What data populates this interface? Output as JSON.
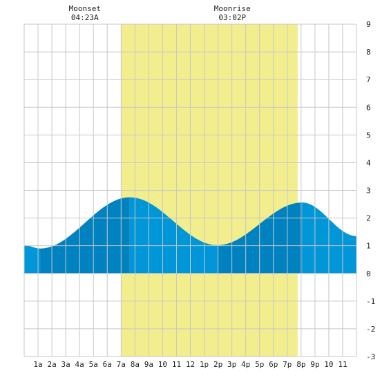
{
  "chart_data": {
    "type": "area",
    "x_unit": "hour",
    "xlim": [
      0,
      24
    ],
    "ylim": [
      -3,
      9
    ],
    "y_ticks": [
      -3,
      -2,
      -1,
      0,
      1,
      2,
      3,
      4,
      5,
      6,
      7,
      8,
      9
    ],
    "x_tick_labels": [
      {
        "hour": 1,
        "label": "1a"
      },
      {
        "hour": 2,
        "label": "2a"
      },
      {
        "hour": 3,
        "label": "3a"
      },
      {
        "hour": 4,
        "label": "4a"
      },
      {
        "hour": 5,
        "label": "5a"
      },
      {
        "hour": 6,
        "label": "6a"
      },
      {
        "hour": 7,
        "label": "7a"
      },
      {
        "hour": 8,
        "label": "8a"
      },
      {
        "hour": 9,
        "label": "9a"
      },
      {
        "hour": 10,
        "label": "10"
      },
      {
        "hour": 11,
        "label": "11"
      },
      {
        "hour": 12,
        "label": "12"
      },
      {
        "hour": 13,
        "label": "1p"
      },
      {
        "hour": 14,
        "label": "2p"
      },
      {
        "hour": 15,
        "label": "3p"
      },
      {
        "hour": 16,
        "label": "4p"
      },
      {
        "hour": 17,
        "label": "5p"
      },
      {
        "hour": 18,
        "label": "6p"
      },
      {
        "hour": 19,
        "label": "7p"
      },
      {
        "hour": 20,
        "label": "8p"
      },
      {
        "hour": 21,
        "label": "9p"
      },
      {
        "hour": 22,
        "label": "10"
      },
      {
        "hour": 23,
        "label": "11"
      }
    ],
    "grid": true,
    "daylight": {
      "start": 7.0,
      "end": 19.75
    },
    "tide_extremes": [
      {
        "hour": 1.15,
        "height": 0.9,
        "kind": "low"
      },
      {
        "hour": 7.62,
        "height": 2.75,
        "kind": "high"
      },
      {
        "hour": 13.95,
        "height": 1.02,
        "kind": "low"
      },
      {
        "hour": 20.07,
        "height": 2.56,
        "kind": "high"
      }
    ],
    "edge_heights": {
      "start": 1.02,
      "end": 1.35
    },
    "moon_events": [
      {
        "label": "Moonset",
        "time": "04:23A",
        "hour": 4.38
      },
      {
        "label": "Moonrise",
        "time": "03:02P",
        "hour": 15.03
      }
    ],
    "colors": {
      "background": "#ffffff",
      "grid": "#c8c8c8",
      "daylight": "#f2ee8e",
      "tide_rising": "#0082c0",
      "tide_falling": "#0096d8",
      "axis_text": "#222222"
    }
  }
}
